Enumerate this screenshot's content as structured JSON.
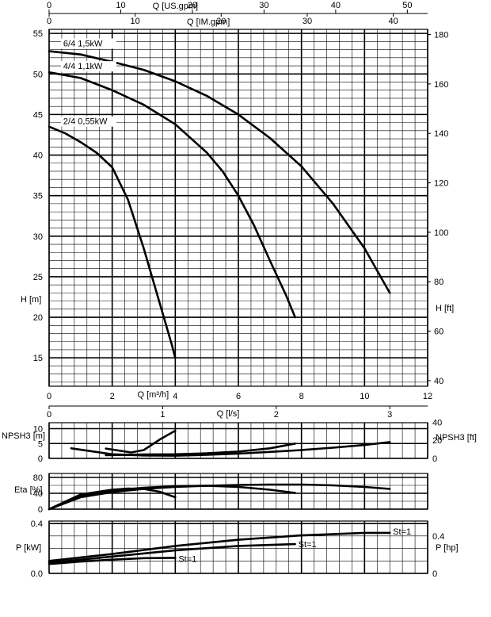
{
  "chart_data": [
    {
      "type": "line",
      "name": "H-Q",
      "xlabel": "Q [m³/h]",
      "ylabel": "H [m]",
      "ylabel_right": "H [ft]",
      "xlim": [
        0,
        12
      ],
      "ylim": [
        11.5,
        55.5
      ],
      "x_ticks": [
        "0",
        "2",
        "4",
        "6",
        "8",
        "10",
        "12"
      ],
      "y_ticks": [
        "15",
        "20",
        "25",
        "30",
        "35",
        "40",
        "45",
        "50",
        "55"
      ],
      "y_right_ticks": [
        "40",
        "60",
        "80",
        "100",
        "120",
        "140",
        "160",
        "180"
      ],
      "top_axis_us": {
        "label": "Q [US.gpm]",
        "ticks": [
          "0",
          "10",
          "20",
          "30",
          "40",
          "50"
        ]
      },
      "top_axis_im": {
        "label": "Q [IM.gpm]",
        "ticks": [
          "0",
          "10",
          "20",
          "30",
          "40"
        ]
      },
      "bottom_axis_ls": {
        "label": "Q [l/s]",
        "ticks": [
          "0",
          "1",
          "2",
          "3"
        ]
      },
      "grid": true,
      "series": [
        {
          "name": "6/4 1,5kW",
          "x": [
            0,
            1,
            2,
            3,
            4,
            5,
            6,
            7,
            8,
            9,
            10,
            10.8
          ],
          "y": [
            52.8,
            52.4,
            51.5,
            50.5,
            49.1,
            47.3,
            45.0,
            42.1,
            38.6,
            34.0,
            28.5,
            23.0
          ]
        },
        {
          "name": "4/4 1,1kW",
          "x": [
            0,
            1,
            2,
            3,
            4,
            5,
            5.5,
            6,
            6.5,
            7,
            7.5,
            7.8
          ],
          "y": [
            50.2,
            49.5,
            48.0,
            46.2,
            43.8,
            40.3,
            38.0,
            35.0,
            31.3,
            27.0,
            22.8,
            20.0
          ]
        },
        {
          "name": "2/4 0,55kW",
          "x": [
            0,
            0.5,
            1,
            1.5,
            2,
            2.5,
            3,
            3.3,
            3.6,
            3.9,
            4.0
          ],
          "y": [
            43.5,
            42.7,
            41.6,
            40.3,
            38.5,
            34.5,
            28.5,
            24.5,
            20.5,
            16.5,
            15.0
          ]
        }
      ]
    },
    {
      "type": "line",
      "name": "NPSH",
      "ylabel": "NPSH3 [m]",
      "ylabel_right": "NPSH3 [ft]",
      "xlim": [
        0,
        12
      ],
      "ylim": [
        0,
        12
      ],
      "y_ticks": [
        "0",
        "5",
        "10"
      ],
      "y_right_ticks": [
        "0",
        "20",
        "40"
      ],
      "grid": true,
      "series": [
        {
          "x": [
            0.7,
            2,
            3,
            4,
            5,
            6,
            7,
            8,
            9,
            10,
            10.8
          ],
          "y": [
            3.4,
            1.4,
            1.0,
            0.9,
            1.2,
            1.6,
            2.2,
            2.8,
            3.6,
            4.5,
            5.5
          ]
        },
        {
          "x": [
            1.8,
            3,
            4,
            5,
            6,
            7,
            7.8
          ],
          "y": [
            1.1,
            1.3,
            1.4,
            1.7,
            2.3,
            3.4,
            5.0
          ]
        },
        {
          "x": [
            1.8,
            2.6,
            3,
            3.5,
            4.0
          ],
          "y": [
            3.3,
            2.0,
            2.8,
            6.3,
            9.3
          ]
        }
      ]
    },
    {
      "type": "line",
      "name": "Efficiency",
      "ylabel": "Eta [%]",
      "xlim": [
        0,
        12
      ],
      "ylim": [
        0,
        90
      ],
      "y_ticks": [
        "0",
        "40",
        "80"
      ],
      "grid": true,
      "series": [
        {
          "x": [
            0,
            1,
            2,
            3,
            4,
            5,
            6,
            7,
            8,
            9,
            10,
            10.8
          ],
          "y": [
            0,
            30,
            43,
            51,
            56,
            59,
            61,
            62,
            62,
            60,
            56,
            51
          ]
        },
        {
          "x": [
            0,
            1,
            2,
            3,
            4,
            5,
            6,
            7,
            7.8
          ],
          "y": [
            0,
            33,
            47,
            54,
            58,
            59,
            56,
            49,
            41
          ]
        },
        {
          "x": [
            0,
            1,
            2,
            2.5,
            3,
            3.5,
            4.0
          ],
          "y": [
            0,
            37,
            49,
            52,
            51,
            44,
            30
          ]
        }
      ]
    },
    {
      "type": "line",
      "name": "Power",
      "ylabel": "P [kW]",
      "ylabel_right": "P [hp]",
      "xlim": [
        0,
        12
      ],
      "ylim": [
        0,
        0.42
      ],
      "y_ticks": [
        "0.0",
        "0.4"
      ],
      "y_right_ticks": [
        "0",
        "0.4"
      ],
      "grid": true,
      "annotations": [
        "St=1",
        "St=1",
        "St=1"
      ],
      "series": [
        {
          "x": [
            0,
            2,
            4,
            6,
            8,
            10,
            10.8
          ],
          "y": [
            0.1,
            0.155,
            0.22,
            0.27,
            0.305,
            0.325,
            0.325
          ]
        },
        {
          "x": [
            0,
            2,
            4,
            6,
            7.8
          ],
          "y": [
            0.085,
            0.135,
            0.185,
            0.22,
            0.235
          ]
        },
        {
          "x": [
            0,
            1,
            2,
            3,
            4.0
          ],
          "y": [
            0.075,
            0.095,
            0.11,
            0.122,
            0.125
          ]
        }
      ]
    }
  ]
}
